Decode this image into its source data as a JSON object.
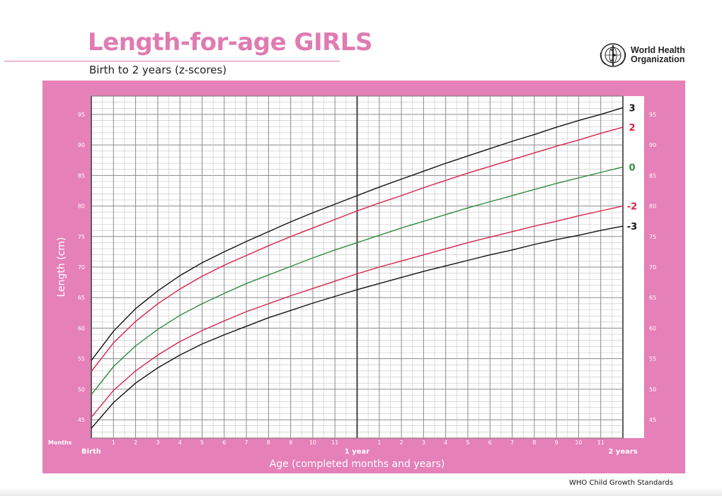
{
  "header": {
    "title": "Length-for-age GIRLS",
    "subtitle": "Birth to 2 years (z-scores)"
  },
  "logo": {
    "name": "World Health Organization",
    "line1": "World Health",
    "line2": "Organization",
    "icon": "who-emblem-icon"
  },
  "footer": {
    "text": "WHO Child Growth Standards"
  },
  "colors": {
    "brand_pink": "#e07bb2",
    "panel_pink": "#e580b8",
    "sd0": "#2e8b3e",
    "sd2": "#d8234a",
    "sd3": "#111111"
  },
  "chart_data": {
    "type": "line",
    "x_unit_label": "Months",
    "xlabel": "Age (completed months and years)",
    "ylabel": "Length (cm)",
    "xlim": [
      0,
      24
    ],
    "ylim": [
      42,
      98
    ],
    "y_ticks": [
      45,
      50,
      55,
      60,
      65,
      70,
      75,
      80,
      85,
      90,
      95
    ],
    "x_month_ticks": [
      {
        "month": 1,
        "label": "1"
      },
      {
        "month": 2,
        "label": "2"
      },
      {
        "month": 3,
        "label": "3"
      },
      {
        "month": 4,
        "label": "4"
      },
      {
        "month": 5,
        "label": "5"
      },
      {
        "month": 6,
        "label": "6"
      },
      {
        "month": 7,
        "label": "7"
      },
      {
        "month": 8,
        "label": "8"
      },
      {
        "month": 9,
        "label": "9"
      },
      {
        "month": 10,
        "label": "10"
      },
      {
        "month": 11,
        "label": "11"
      },
      {
        "month": 13,
        "label": "1"
      },
      {
        "month": 14,
        "label": "2"
      },
      {
        "month": 15,
        "label": "3"
      },
      {
        "month": 16,
        "label": "4"
      },
      {
        "month": 17,
        "label": "5"
      },
      {
        "month": 18,
        "label": "6"
      },
      {
        "month": 19,
        "label": "7"
      },
      {
        "month": 20,
        "label": "8"
      },
      {
        "month": 21,
        "label": "9"
      },
      {
        "month": 22,
        "label": "10"
      },
      {
        "month": 23,
        "label": "11"
      }
    ],
    "x_year_labels": [
      {
        "month": 0,
        "label": "Birth"
      },
      {
        "month": 12,
        "label": "1 year"
      },
      {
        "month": 24,
        "label": "2 years"
      }
    ],
    "x": [
      0,
      1,
      2,
      3,
      4,
      5,
      6,
      7,
      8,
      9,
      10,
      11,
      12,
      13,
      14,
      15,
      16,
      17,
      18,
      19,
      20,
      21,
      22,
      23,
      24
    ],
    "series": [
      {
        "name": "3",
        "color": "#111111",
        "values": [
          54.7,
          59.5,
          63.2,
          66.1,
          68.6,
          70.7,
          72.5,
          74.2,
          75.8,
          77.4,
          78.9,
          80.3,
          81.7,
          83.1,
          84.4,
          85.7,
          87.0,
          88.2,
          89.4,
          90.6,
          91.7,
          92.9,
          94.0,
          95.0,
          96.1
        ]
      },
      {
        "name": "2",
        "color": "#d8234a",
        "values": [
          52.9,
          57.6,
          61.1,
          64.0,
          66.4,
          68.5,
          70.3,
          71.9,
          73.5,
          75.0,
          76.4,
          77.8,
          79.2,
          80.5,
          81.7,
          83.0,
          84.2,
          85.4,
          86.5,
          87.6,
          88.7,
          89.8,
          90.8,
          91.9,
          92.9
        ]
      },
      {
        "name": "0",
        "color": "#2e8b3e",
        "values": [
          49.1,
          53.7,
          57.1,
          59.8,
          62.1,
          64.0,
          65.7,
          67.3,
          68.7,
          70.1,
          71.5,
          72.8,
          74.0,
          75.2,
          76.4,
          77.5,
          78.6,
          79.7,
          80.7,
          81.7,
          82.7,
          83.7,
          84.6,
          85.5,
          86.4
        ]
      },
      {
        "name": "-2",
        "color": "#d8234a",
        "values": [
          45.4,
          49.8,
          53.0,
          55.6,
          57.8,
          59.6,
          61.2,
          62.7,
          64.0,
          65.3,
          66.5,
          67.7,
          68.9,
          70.0,
          71.0,
          72.0,
          73.0,
          74.0,
          74.9,
          75.8,
          76.7,
          77.5,
          78.4,
          79.2,
          80.0
        ]
      },
      {
        "name": "-3",
        "color": "#111111",
        "values": [
          43.6,
          47.8,
          51.0,
          53.5,
          55.6,
          57.4,
          58.9,
          60.3,
          61.7,
          62.9,
          64.1,
          65.2,
          66.3,
          67.3,
          68.3,
          69.3,
          70.2,
          71.1,
          72.0,
          72.8,
          73.7,
          74.5,
          75.2,
          76.0,
          76.7
        ]
      }
    ],
    "grid": true,
    "legend": "end-of-line labels"
  }
}
